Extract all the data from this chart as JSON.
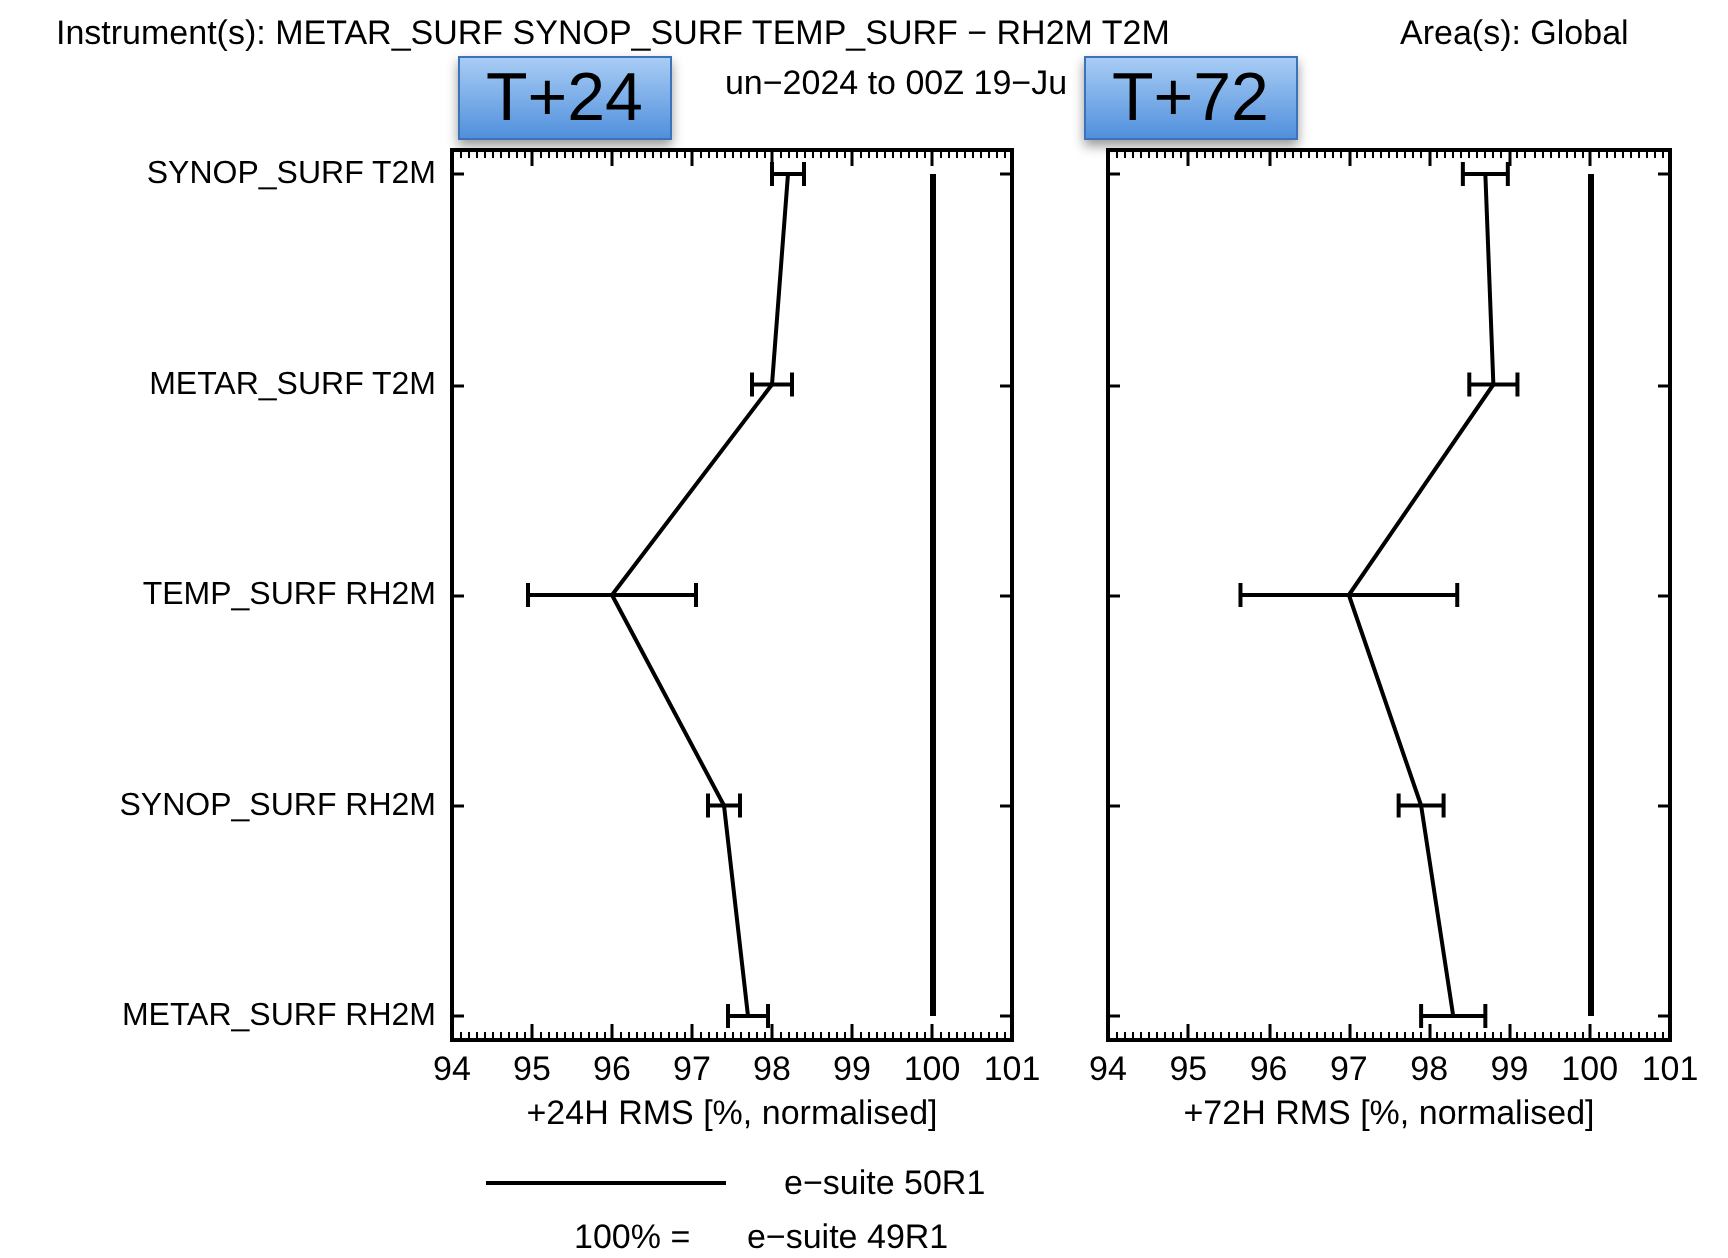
{
  "chart_data": [
    {
      "type": "line",
      "title": "T+24",
      "orientation": "horizontal",
      "xlabel": "+24H RMS [%, normalised]",
      "categories": [
        "SYNOP_SURF T2M",
        "METAR_SURF T2M",
        "TEMP_SURF RH2M",
        "SYNOP_SURF RH2M",
        "METAR_SURF RH2M"
      ],
      "series": [
        {
          "name": "e−suite 50R1",
          "color": "#000000",
          "values": [
            98.2,
            98.0,
            96.0,
            97.4,
            97.7
          ],
          "errors": [
            0.2,
            0.25,
            1.05,
            0.2,
            0.25
          ]
        }
      ],
      "xlim": [
        94,
        101
      ],
      "xticks": [
        94,
        95,
        96,
        97,
        98,
        99,
        100,
        101
      ],
      "ref_lines": [
        {
          "axis": "x",
          "value": 100,
          "color": "#000000"
        }
      ],
      "annotations": [
        "Instrument(s): METAR_SURF SYNOP_SURF TEMP_SURF − RH2M T2M",
        "Area(s): Global",
        "un−2024 to 00Z 19−Ju",
        "100% =      e−suite 49R1"
      ],
      "legend": "bottom",
      "grid": false,
      "marker": "none",
      "line_style": "solid"
    },
    {
      "type": "line",
      "title": "T+72",
      "orientation": "horizontal",
      "xlabel": "+72H RMS [%, normalised]",
      "categories": [
        null,
        null,
        null,
        null,
        null
      ],
      "series": [
        {
          "color": "#000000",
          "values": [
            98.7,
            98.8,
            97.0,
            97.9,
            98.3
          ],
          "errors": [
            0.28,
            0.3,
            1.35,
            0.28,
            0.4
          ]
        }
      ],
      "xlim": [
        94,
        101
      ],
      "xticks": [
        94,
        95,
        96,
        97,
        98,
        99,
        100,
        101
      ],
      "ref_lines": [
        {
          "axis": "x",
          "value": 100,
          "color": "#000000"
        }
      ],
      "tick_labels": "x",
      "grid": false,
      "marker": "none",
      "line_style": "solid"
    }
  ]
}
